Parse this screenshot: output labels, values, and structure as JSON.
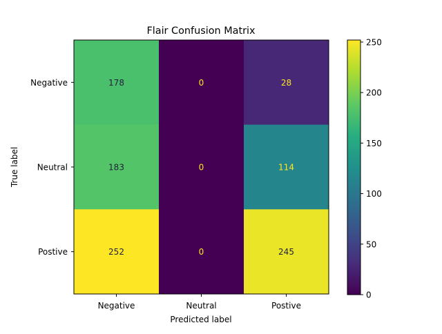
{
  "chart_data": {
    "type": "heatmap",
    "title": "Flair Confusion Matrix",
    "xlabel": "Predicted label",
    "ylabel": "True label",
    "x_categories": [
      "Negative",
      "Neutral",
      "Postive"
    ],
    "y_categories": [
      "Negative",
      "Neutral",
      "Postive"
    ],
    "values": [
      [
        178,
        0,
        28
      ],
      [
        183,
        0,
        114
      ],
      [
        252,
        0,
        245
      ]
    ],
    "color_scale": {
      "name": "viridis",
      "min": 0,
      "max": 252,
      "ticks": [
        "0",
        "50",
        "100",
        "150",
        "200",
        "250"
      ]
    },
    "grid": false,
    "colorbar": "right"
  }
}
